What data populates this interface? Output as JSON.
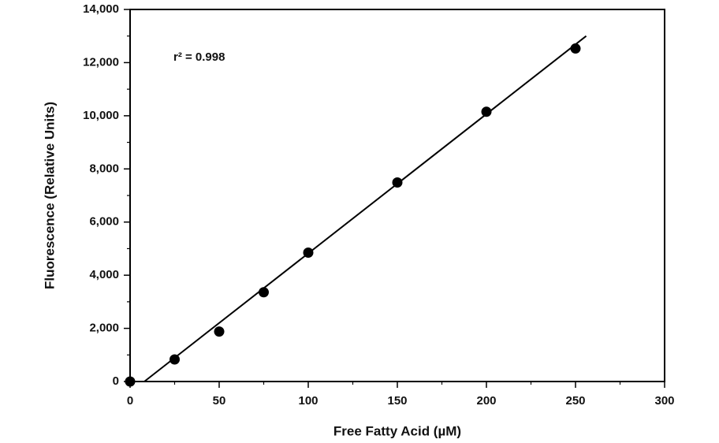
{
  "chart_data": {
    "type": "scatter",
    "x_label": "Free Fatty Acid (µM)",
    "y_label": "Fluorescence (Relative Units)",
    "annotation": "r² = 0.998",
    "x": [
      0,
      25,
      50,
      75,
      100,
      150,
      200,
      250
    ],
    "values": [
      0,
      830,
      1880,
      3360,
      4850,
      7490,
      10150,
      12530
    ],
    "color": "#000000",
    "fit_line": {
      "x": [
        8,
        256
      ],
      "values": [
        0,
        13000
      ]
    },
    "xlim": [
      0,
      300
    ],
    "ylim": [
      0,
      14000
    ],
    "xticks": [
      0,
      50,
      100,
      150,
      200,
      250,
      300
    ],
    "yticks": [
      0,
      {
        "value": 2000,
        "label": "2,000"
      },
      {
        "value": 4000,
        "label": "4,000"
      },
      {
        "value": 6000,
        "label": "6,000"
      },
      {
        "value": 8000,
        "label": "8,000"
      },
      {
        "value": 10000,
        "label": "10,000"
      },
      {
        "value": 12000,
        "label": "12,000"
      },
      {
        "value": 14000,
        "label": "14,000"
      }
    ],
    "x_minor_ticks": [
      25,
      75,
      125,
      175,
      225,
      275
    ],
    "y_minor_ticks": [
      1000,
      3000,
      5000,
      7000,
      9000,
      11000,
      13000
    ]
  }
}
